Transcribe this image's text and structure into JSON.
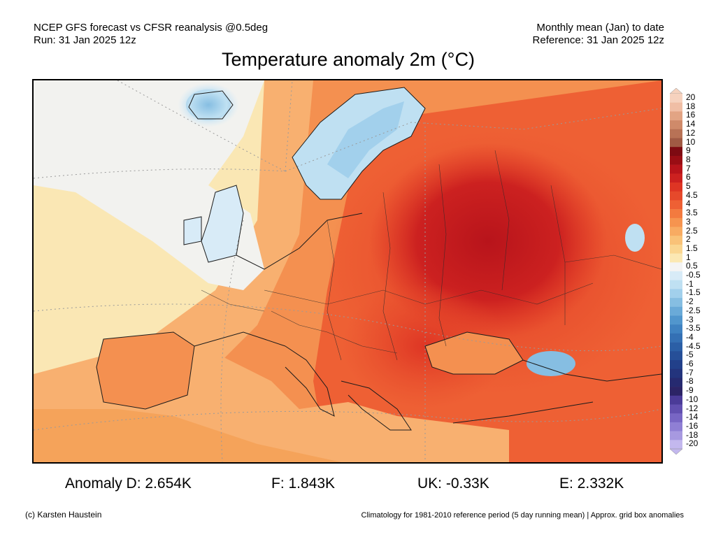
{
  "header": {
    "left_line1": "NCEP GFS forecast vs CFSR reanalysis @0.5deg",
    "left_line2": "Run: 31 Jan 2025 12z",
    "right_line1": "Monthly mean (Jan) to date",
    "right_line2": "Reference: 31 Jan 2025 12z"
  },
  "title": "Temperature anomaly 2m (°C)",
  "colorbar": {
    "labels": [
      "20",
      "18",
      "16",
      "14",
      "12",
      "10",
      "9",
      "8",
      "7",
      "6",
      "5",
      "4.5",
      "4",
      "3.5",
      "3",
      "2.5",
      "2",
      "1.5",
      "1",
      "0.5",
      "-0.5",
      "-1",
      "-1.5",
      "-2",
      "-2.5",
      "-3",
      "-3.5",
      "-4",
      "-4.5",
      "-5",
      "-6",
      "-7",
      "-8",
      "-9",
      "-10",
      "-12",
      "-14",
      "-16",
      "-18",
      "-20"
    ],
    "colors": [
      "#f6d2be",
      "#f0bea5",
      "#e2a484",
      "#cf8a6a",
      "#b87256",
      "#a05a44",
      "#7e0a12",
      "#9a0d14",
      "#b8141b",
      "#cc2120",
      "#de3524",
      "#e6492b",
      "#ee6034",
      "#f37a3f",
      "#f6944f",
      "#f8ab62",
      "#f9c278",
      "#fad691",
      "#fbe8b3",
      "#f4f4f4",
      "#d8ebf7",
      "#bfe0f2",
      "#a2d0ec",
      "#86bee2",
      "#6aaad8",
      "#5196cd",
      "#3f82c1",
      "#3470b4",
      "#2b5fa6",
      "#264f98",
      "#22408a",
      "#23347d",
      "#262a70",
      "#2c2466",
      "#4b3b98",
      "#6250b0",
      "#7866c4",
      "#8f7fd4",
      "#a799e0",
      "#c3b8ee"
    ]
  },
  "stats": {
    "d": "Anomaly D: 2.654K",
    "f": "F: 1.843K",
    "uk": "UK: -0.33K",
    "e": "E: 2.332K"
  },
  "footer": {
    "left": "(c) Karsten Haustein",
    "right": "Climatology for 1981-2010 reference period (5 day running mean) | Approx. grid box anomalies"
  }
}
